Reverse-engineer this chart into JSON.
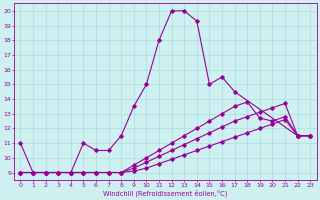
{
  "xlabel": "Windchill (Refroidissement éolien,°C)",
  "bg_color": "#cff0f0",
  "line_color": "#990099",
  "grid_color": "#aadddd",
  "xlim": [
    -0.5,
    23.5
  ],
  "ylim": [
    8.5,
    20.5
  ],
  "xticks": [
    0,
    1,
    2,
    3,
    4,
    5,
    6,
    7,
    8,
    9,
    10,
    11,
    12,
    13,
    14,
    15,
    16,
    17,
    18,
    19,
    20,
    21,
    22,
    23
  ],
  "yticks": [
    9,
    10,
    11,
    12,
    13,
    14,
    15,
    16,
    17,
    18,
    19,
    20
  ],
  "series": [
    {
      "x": [
        0,
        1,
        2,
        3,
        4,
        5,
        6,
        7,
        8,
        9,
        10,
        11,
        12,
        13,
        14,
        15,
        16,
        17,
        22,
        23
      ],
      "y": [
        11,
        9,
        9,
        9,
        9,
        11,
        10.5,
        10.5,
        11.5,
        13.5,
        15,
        18,
        20,
        20,
        19.3,
        15,
        15.5,
        14.5,
        11.5,
        11.5
      ]
    },
    {
      "x": [
        0,
        1,
        2,
        3,
        4,
        5,
        6,
        7,
        8,
        9,
        10,
        11,
        12,
        13,
        14,
        15,
        16,
        17,
        18,
        19,
        20,
        21,
        22,
        23
      ],
      "y": [
        9,
        9,
        9,
        9,
        9,
        9,
        9,
        9,
        9,
        9.5,
        10,
        10.5,
        11,
        11.5,
        12,
        12.5,
        13,
        13.5,
        13.8,
        12.7,
        12.5,
        12.8,
        11.5,
        11.5
      ]
    },
    {
      "x": [
        0,
        1,
        2,
        3,
        4,
        5,
        6,
        7,
        8,
        9,
        10,
        11,
        12,
        13,
        14,
        15,
        16,
        17,
        18,
        19,
        20,
        21,
        22,
        23
      ],
      "y": [
        9,
        9,
        9,
        9,
        9,
        9,
        9,
        9,
        9,
        9.3,
        9.7,
        10.1,
        10.5,
        10.9,
        11.3,
        11.7,
        12.1,
        12.5,
        12.8,
        13.1,
        13.4,
        13.7,
        11.5,
        11.5
      ]
    },
    {
      "x": [
        0,
        1,
        2,
        3,
        4,
        5,
        6,
        7,
        8,
        9,
        10,
        11,
        12,
        13,
        14,
        15,
        16,
        17,
        18,
        19,
        20,
        21,
        22,
        23
      ],
      "y": [
        9,
        9,
        9,
        9,
        9,
        9,
        9,
        9,
        9,
        9.1,
        9.3,
        9.6,
        9.9,
        10.2,
        10.5,
        10.8,
        11.1,
        11.4,
        11.7,
        12.0,
        12.3,
        12.6,
        11.5,
        11.5
      ]
    }
  ]
}
